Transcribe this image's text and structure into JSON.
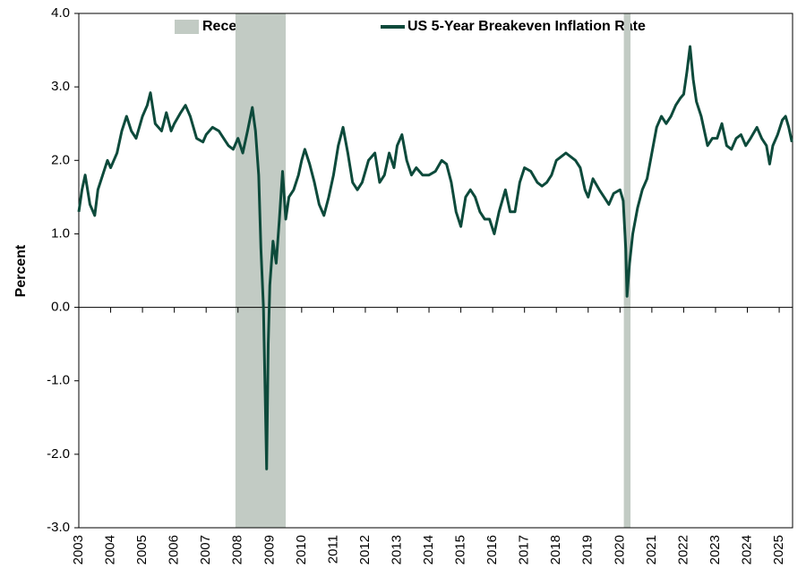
{
  "chart_data": {
    "type": "line",
    "y_label": "Percent",
    "xlim": [
      2003,
      2025.42
    ],
    "xticks": [
      2003,
      2004,
      2005,
      2006,
      2007,
      2008,
      2009,
      2010,
      2011,
      2012,
      2013,
      2014,
      2015,
      2016,
      2017,
      2018,
      2019,
      2020,
      2021,
      2022,
      2023,
      2024,
      2025
    ],
    "ylim": [
      -3,
      4
    ],
    "yticks": [
      {
        "value": -3,
        "label": "-3.0"
      },
      {
        "value": -2,
        "label": "-2.0"
      },
      {
        "value": -1,
        "label": "-1.0"
      },
      {
        "value": 0,
        "label": "0.0"
      },
      {
        "value": 1,
        "label": "1.0"
      },
      {
        "value": 2,
        "label": "2.0"
      },
      {
        "value": 3,
        "label": "3.0"
      },
      {
        "value": 4,
        "label": "4.0"
      }
    ],
    "shaded_regions": {
      "name": "Recession",
      "color": "#c2cbc4",
      "ranges": [
        [
          2007.92,
          2009.5
        ],
        [
          2020.12,
          2020.33
        ]
      ]
    },
    "x": [
      2003.0,
      2003.1,
      2003.2,
      2003.35,
      2003.5,
      2003.6,
      2003.75,
      2003.9,
      2004.0,
      2004.2,
      2004.35,
      2004.5,
      2004.65,
      2004.8,
      2005.0,
      2005.15,
      2005.25,
      2005.4,
      2005.6,
      2005.75,
      2005.9,
      2006.0,
      2006.2,
      2006.35,
      2006.5,
      2006.7,
      2006.9,
      2007.0,
      2007.2,
      2007.4,
      2007.55,
      2007.7,
      2007.85,
      2008.0,
      2008.15,
      2008.3,
      2008.45,
      2008.55,
      2008.65,
      2008.72,
      2008.8,
      2008.85,
      2008.9,
      2008.95,
      2009.0,
      2009.1,
      2009.2,
      2009.3,
      2009.4,
      2009.5,
      2009.6,
      2009.75,
      2009.9,
      2010.0,
      2010.1,
      2010.25,
      2010.4,
      2010.55,
      2010.7,
      2010.85,
      2011.0,
      2011.15,
      2011.3,
      2011.45,
      2011.6,
      2011.75,
      2011.9,
      2012.1,
      2012.3,
      2012.45,
      2012.6,
      2012.75,
      2012.9,
      2013.0,
      2013.15,
      2013.3,
      2013.45,
      2013.6,
      2013.8,
      2014.0,
      2014.2,
      2014.4,
      2014.55,
      2014.7,
      2014.85,
      2015.0,
      2015.15,
      2015.3,
      2015.45,
      2015.6,
      2015.75,
      2015.9,
      2016.05,
      2016.2,
      2016.4,
      2016.55,
      2016.7,
      2016.85,
      2017.0,
      2017.2,
      2017.4,
      2017.55,
      2017.7,
      2017.85,
      2018.0,
      2018.15,
      2018.3,
      2018.45,
      2018.6,
      2018.75,
      2018.9,
      2019.0,
      2019.15,
      2019.35,
      2019.5,
      2019.65,
      2019.8,
      2020.0,
      2020.1,
      2020.18,
      2020.22,
      2020.3,
      2020.4,
      2020.55,
      2020.7,
      2020.85,
      2021.0,
      2021.15,
      2021.3,
      2021.45,
      2021.6,
      2021.75,
      2021.9,
      2022.0,
      2022.1,
      2022.2,
      2022.3,
      2022.4,
      2022.55,
      2022.65,
      2022.75,
      2022.9,
      2023.05,
      2023.2,
      2023.35,
      2023.5,
      2023.65,
      2023.8,
      2023.95,
      2024.1,
      2024.3,
      2024.45,
      2024.6,
      2024.7,
      2024.8,
      2024.95,
      2025.1,
      2025.2,
      2025.3,
      2025.4
    ],
    "series": [
      {
        "name": "US 5-Year Breakeven Inflation Rate",
        "color": "#0d4a3b",
        "values": [
          1.3,
          1.6,
          1.8,
          1.4,
          1.25,
          1.6,
          1.8,
          2.0,
          1.9,
          2.1,
          2.4,
          2.6,
          2.4,
          2.3,
          2.6,
          2.75,
          2.92,
          2.5,
          2.4,
          2.65,
          2.4,
          2.5,
          2.65,
          2.75,
          2.6,
          2.3,
          2.25,
          2.35,
          2.45,
          2.4,
          2.3,
          2.2,
          2.15,
          2.3,
          2.1,
          2.4,
          2.72,
          2.4,
          1.8,
          0.8,
          0.0,
          -1.1,
          -2.2,
          -0.5,
          0.3,
          0.9,
          0.6,
          1.2,
          1.85,
          1.2,
          1.5,
          1.6,
          1.8,
          2.0,
          2.15,
          1.95,
          1.7,
          1.4,
          1.25,
          1.5,
          1.8,
          2.2,
          2.45,
          2.1,
          1.7,
          1.6,
          1.7,
          2.0,
          2.1,
          1.7,
          1.8,
          2.1,
          1.9,
          2.2,
          2.35,
          2.0,
          1.8,
          1.9,
          1.8,
          1.8,
          1.85,
          2.0,
          1.95,
          1.7,
          1.3,
          1.1,
          1.5,
          1.6,
          1.5,
          1.3,
          1.2,
          1.2,
          1.0,
          1.3,
          1.6,
          1.3,
          1.3,
          1.7,
          1.9,
          1.85,
          1.7,
          1.65,
          1.7,
          1.8,
          2.0,
          2.05,
          2.1,
          2.05,
          2.0,
          1.9,
          1.6,
          1.5,
          1.75,
          1.6,
          1.5,
          1.4,
          1.55,
          1.6,
          1.45,
          0.8,
          0.15,
          0.6,
          1.0,
          1.35,
          1.6,
          1.75,
          2.1,
          2.45,
          2.6,
          2.5,
          2.6,
          2.75,
          2.85,
          2.9,
          3.2,
          3.55,
          3.1,
          2.8,
          2.6,
          2.4,
          2.2,
          2.3,
          2.3,
          2.5,
          2.2,
          2.15,
          2.3,
          2.35,
          2.2,
          2.3,
          2.45,
          2.3,
          2.2,
          1.95,
          2.2,
          2.35,
          2.55,
          2.6,
          2.45,
          2.25
        ]
      }
    ]
  }
}
